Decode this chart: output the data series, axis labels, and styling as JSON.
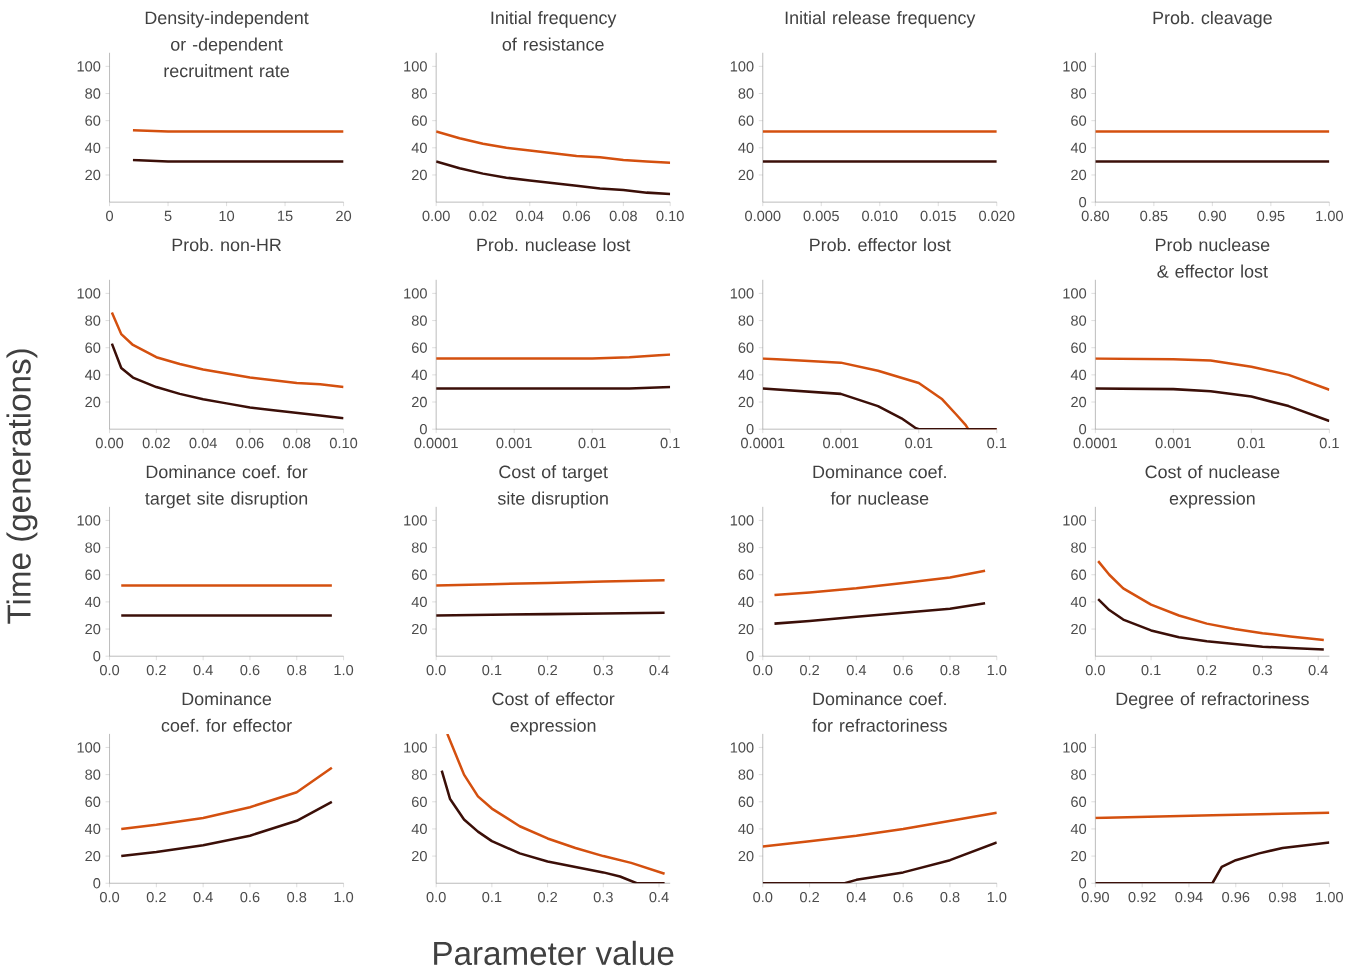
{
  "chart_data": [
    {
      "type": "line",
      "title": "Density-independent or -dependent recruitment rate",
      "ylabel": "Time (generations)",
      "xlim": [
        0,
        20
      ],
      "xticks": [
        0,
        5,
        10,
        15,
        20
      ],
      "ylim": [
        0,
        110
      ],
      "yticks": [
        20,
        40,
        60,
        80,
        100
      ],
      "series": [
        {
          "color": "#d4500f",
          "x": [
            2,
            5,
            10,
            15,
            20
          ],
          "values": [
            53,
            52,
            52,
            52,
            52
          ]
        },
        {
          "color": "#3b0f08",
          "x": [
            2,
            5,
            10,
            15,
            20
          ],
          "values": [
            31,
            30,
            30,
            30,
            30
          ]
        }
      ]
    },
    {
      "type": "line",
      "title": "Initial frequency of resistance",
      "xlim": [
        0,
        0.1
      ],
      "xticks": [
        {
          "value": 0,
          "label": "0.00"
        },
        {
          "value": 0.02,
          "label": "0.02"
        },
        {
          "value": 0.04,
          "label": "0.04"
        },
        {
          "value": 0.06,
          "label": "0.06"
        },
        {
          "value": 0.08,
          "label": "0.08"
        },
        {
          "value": 0.1,
          "label": "0.10"
        }
      ],
      "ylim": [
        0,
        110
      ],
      "yticks": [
        20,
        40,
        60,
        80,
        100
      ],
      "series": [
        {
          "color": "#d4500f",
          "x": [
            0,
            0.01,
            0.02,
            0.03,
            0.04,
            0.05,
            0.06,
            0.07,
            0.08,
            0.09,
            0.1
          ],
          "values": [
            52,
            47,
            43,
            40,
            38,
            36,
            34,
            33,
            31,
            30,
            29
          ]
        },
        {
          "color": "#3b0f08",
          "x": [
            0,
            0.01,
            0.02,
            0.03,
            0.04,
            0.05,
            0.06,
            0.07,
            0.08,
            0.09,
            0.1
          ],
          "values": [
            30,
            25,
            21,
            18,
            16,
            14,
            12,
            10,
            9,
            7,
            6
          ]
        }
      ]
    },
    {
      "type": "line",
      "title": "Initial release frequency",
      "xlim": [
        0,
        0.02
      ],
      "xticks": [
        {
          "value": 0,
          "label": "0.000"
        },
        {
          "value": 0.005,
          "label": "0.005"
        },
        {
          "value": 0.01,
          "label": "0.010"
        },
        {
          "value": 0.015,
          "label": "0.015"
        },
        {
          "value": 0.02,
          "label": "0.020"
        }
      ],
      "ylim": [
        0,
        110
      ],
      "yticks": [
        20,
        40,
        60,
        80,
        100
      ],
      "series": [
        {
          "color": "#d4500f",
          "x": [
            0,
            0.01,
            0.02
          ],
          "values": [
            52,
            52,
            52
          ]
        },
        {
          "color": "#3b0f08",
          "x": [
            0,
            0.01,
            0.02
          ],
          "values": [
            30,
            30,
            30
          ]
        }
      ]
    },
    {
      "type": "line",
      "title": "Prob. cleavage",
      "xlim": [
        0.8,
        1
      ],
      "xticks": [
        {
          "value": 0.8,
          "label": "0.80"
        },
        {
          "value": 0.85,
          "label": "0.85"
        },
        {
          "value": 0.9,
          "label": "0.90"
        },
        {
          "value": 0.95,
          "label": "0.95"
        },
        {
          "value": 1,
          "label": "1.00"
        }
      ],
      "ylim": [
        0,
        110
      ],
      "yticks": [
        0,
        20,
        40,
        60,
        80,
        100
      ],
      "series": [
        {
          "color": "#d4500f",
          "x": [
            0.8,
            0.9,
            1
          ],
          "values": [
            52,
            52,
            52
          ]
        },
        {
          "color": "#3b0f08",
          "x": [
            0.8,
            0.9,
            1
          ],
          "values": [
            30,
            30,
            30
          ]
        }
      ]
    },
    {
      "type": "line",
      "title": "Prob. non-HR",
      "xlim": [
        0,
        0.1
      ],
      "xticks": [
        {
          "value": 0,
          "label": "0.00"
        },
        {
          "value": 0.02,
          "label": "0.02"
        },
        {
          "value": 0.04,
          "label": "0.04"
        },
        {
          "value": 0.06,
          "label": "0.06"
        },
        {
          "value": 0.08,
          "label": "0.08"
        },
        {
          "value": 0.1,
          "label": "0.10"
        }
      ],
      "ylim": [
        0,
        110
      ],
      "yticks": [
        20,
        40,
        60,
        80,
        100
      ],
      "series": [
        {
          "color": "#d4500f",
          "x": [
            0.001,
            0.005,
            0.01,
            0.02,
            0.03,
            0.04,
            0.05,
            0.06,
            0.07,
            0.08,
            0.09,
            0.1
          ],
          "values": [
            86,
            70,
            62,
            53,
            48,
            44,
            41,
            38,
            36,
            34,
            33,
            31
          ]
        },
        {
          "color": "#3b0f08",
          "x": [
            0.001,
            0.005,
            0.01,
            0.02,
            0.03,
            0.04,
            0.05,
            0.06,
            0.07,
            0.08,
            0.09,
            0.1
          ],
          "values": [
            63,
            45,
            38,
            31,
            26,
            22,
            19,
            16,
            14,
            12,
            10,
            8
          ]
        }
      ]
    },
    {
      "type": "line",
      "title": "Prob. nuclease lost",
      "log": "x",
      "xlim": [
        0.0001,
        0.1
      ],
      "xticks": [
        0.0001,
        0.001,
        0.01,
        0.1
      ],
      "ylim": [
        0,
        110
      ],
      "yticks": [
        0,
        20,
        40,
        60,
        80,
        100
      ],
      "series": [
        {
          "color": "#d4500f",
          "x": [
            0.0001,
            0.001,
            0.01,
            0.03,
            0.1
          ],
          "values": [
            52,
            52,
            52,
            53,
            55
          ]
        },
        {
          "color": "#3b0f08",
          "x": [
            0.0001,
            0.001,
            0.01,
            0.03,
            0.1
          ],
          "values": [
            30,
            30,
            30,
            30,
            31
          ]
        }
      ]
    },
    {
      "type": "line",
      "title": "Prob. effector lost",
      "log": "x",
      "xlim": [
        0.0001,
        0.1
      ],
      "xticks": [
        0.0001,
        0.001,
        0.01,
        0.1
      ],
      "ylim": [
        0,
        110
      ],
      "yticks": [
        0,
        20,
        40,
        60,
        80,
        100
      ],
      "series": [
        {
          "color": "#d4500f",
          "x": [
            0.0001,
            0.0003,
            0.001,
            0.003,
            0.01,
            0.02,
            0.03,
            0.04,
            0.043,
            0.1
          ],
          "values": [
            52,
            50.5,
            49,
            43,
            34,
            22,
            11,
            3,
            0,
            0
          ]
        },
        {
          "color": "#3b0f08",
          "x": [
            0.0001,
            0.001,
            0.003,
            0.006,
            0.009,
            0.01,
            0.1
          ],
          "values": [
            30,
            26,
            17,
            8,
            1,
            0,
            0
          ]
        }
      ]
    },
    {
      "type": "line",
      "title": "Prob nuclease & effector lost",
      "log": "x",
      "xlim": [
        0.0001,
        0.1
      ],
      "xticks": [
        0.0001,
        0.001,
        0.01,
        0.1
      ],
      "ylim": [
        0,
        110
      ],
      "yticks": [
        0,
        20,
        40,
        60,
        80,
        100
      ],
      "series": [
        {
          "color": "#d4500f",
          "x": [
            0.0001,
            0.001,
            0.003,
            0.01,
            0.03,
            0.1
          ],
          "values": [
            52,
            51.5,
            50.5,
            46,
            40,
            29
          ]
        },
        {
          "color": "#3b0f08",
          "x": [
            0.0001,
            0.001,
            0.003,
            0.01,
            0.03,
            0.1
          ],
          "values": [
            30,
            29.5,
            28,
            24,
            17,
            6
          ]
        }
      ]
    },
    {
      "type": "line",
      "title": "Dominance coef. for target site disruption",
      "xlim": [
        0,
        1
      ],
      "xticks": [
        {
          "value": 0,
          "label": "0.0"
        },
        {
          "value": 0.2,
          "label": "0.2"
        },
        {
          "value": 0.4,
          "label": "0.4"
        },
        {
          "value": 0.6,
          "label": "0.6"
        },
        {
          "value": 0.8,
          "label": "0.8"
        },
        {
          "value": 1,
          "label": "1.0"
        }
      ],
      "ylim": [
        0,
        110
      ],
      "yticks": [
        0,
        20,
        40,
        60,
        80,
        100
      ],
      "series": [
        {
          "color": "#d4500f",
          "x": [
            0.05,
            0.5,
            0.95
          ],
          "values": [
            52,
            52,
            52
          ]
        },
        {
          "color": "#3b0f08",
          "x": [
            0.05,
            0.5,
            0.95
          ],
          "values": [
            30,
            30,
            30
          ]
        }
      ]
    },
    {
      "type": "line",
      "title": "Cost of target site disruption",
      "xlim": [
        0,
        0.42
      ],
      "xticks": [
        {
          "value": 0,
          "label": "0.0"
        },
        {
          "value": 0.1,
          "label": "0.1"
        },
        {
          "value": 0.2,
          "label": "0.2"
        },
        {
          "value": 0.3,
          "label": "0.3"
        },
        {
          "value": 0.4,
          "label": "0.4"
        }
      ],
      "ylim": [
        0,
        110
      ],
      "yticks": [
        20,
        40,
        60,
        80,
        100
      ],
      "series": [
        {
          "color": "#d4500f",
          "x": [
            0,
            0.1,
            0.2,
            0.3,
            0.41
          ],
          "values": [
            52,
            53,
            54,
            55,
            56
          ]
        },
        {
          "color": "#3b0f08",
          "x": [
            0,
            0.1,
            0.2,
            0.3,
            0.41
          ],
          "values": [
            30,
            30.5,
            31,
            31.5,
            32
          ]
        }
      ]
    },
    {
      "type": "line",
      "title": "Dominance coef. for nuclease",
      "xlim": [
        0,
        1
      ],
      "xticks": [
        {
          "value": 0,
          "label": "0.0"
        },
        {
          "value": 0.2,
          "label": "0.2"
        },
        {
          "value": 0.4,
          "label": "0.4"
        },
        {
          "value": 0.6,
          "label": "0.6"
        },
        {
          "value": 0.8,
          "label": "0.8"
        },
        {
          "value": 1,
          "label": "1.0"
        }
      ],
      "ylim": [
        0,
        110
      ],
      "yticks": [
        0,
        20,
        40,
        60,
        80,
        100
      ],
      "series": [
        {
          "color": "#d4500f",
          "x": [
            0.05,
            0.2,
            0.4,
            0.6,
            0.8,
            0.95
          ],
          "values": [
            45,
            47,
            50,
            54,
            58,
            63
          ]
        },
        {
          "color": "#3b0f08",
          "x": [
            0.05,
            0.2,
            0.4,
            0.6,
            0.8,
            0.95
          ],
          "values": [
            24,
            26,
            29,
            32,
            35,
            39
          ]
        }
      ]
    },
    {
      "type": "line",
      "title": "Cost of nuclease expression",
      "xlim": [
        0,
        0.42
      ],
      "xticks": [
        {
          "value": 0,
          "label": "0.0"
        },
        {
          "value": 0.1,
          "label": "0.1"
        },
        {
          "value": 0.2,
          "label": "0.2"
        },
        {
          "value": 0.3,
          "label": "0.3"
        },
        {
          "value": 0.4,
          "label": "0.4"
        }
      ],
      "ylim": [
        0,
        110
      ],
      "yticks": [
        20,
        40,
        60,
        80,
        100
      ],
      "series": [
        {
          "color": "#d4500f",
          "x": [
            0.005,
            0.025,
            0.05,
            0.1,
            0.15,
            0.2,
            0.25,
            0.3,
            0.35,
            0.41
          ],
          "values": [
            70,
            60,
            50,
            38,
            30,
            24,
            20,
            17,
            14.5,
            12
          ]
        },
        {
          "color": "#3b0f08",
          "x": [
            0.005,
            0.025,
            0.05,
            0.1,
            0.15,
            0.2,
            0.25,
            0.3,
            0.35,
            0.41
          ],
          "values": [
            42,
            34,
            27,
            19,
            14,
            11,
            9,
            7,
            6,
            5
          ]
        }
      ]
    },
    {
      "type": "line",
      "title": "Dominance coef. for effector",
      "xlim": [
        0,
        1
      ],
      "xticks": [
        {
          "value": 0,
          "label": "0.0"
        },
        {
          "value": 0.2,
          "label": "0.2"
        },
        {
          "value": 0.4,
          "label": "0.4"
        },
        {
          "value": 0.6,
          "label": "0.6"
        },
        {
          "value": 0.8,
          "label": "0.8"
        },
        {
          "value": 1,
          "label": "1.0"
        }
      ],
      "ylim": [
        0,
        110
      ],
      "yticks": [
        0,
        20,
        40,
        60,
        80,
        100
      ],
      "series": [
        {
          "color": "#d4500f",
          "x": [
            0.05,
            0.2,
            0.4,
            0.6,
            0.8,
            0.95
          ],
          "values": [
            40,
            43,
            48,
            56,
            67,
            85
          ]
        },
        {
          "color": "#3b0f08",
          "x": [
            0.05,
            0.2,
            0.4,
            0.6,
            0.8,
            0.95
          ],
          "values": [
            20,
            23,
            28,
            35,
            46,
            60
          ]
        }
      ]
    },
    {
      "type": "line",
      "title": "Cost of effector expression",
      "xlabel": "Parameter value",
      "xlim": [
        0,
        0.42
      ],
      "xticks": [
        {
          "value": 0,
          "label": "0.0"
        },
        {
          "value": 0.1,
          "label": "0.1"
        },
        {
          "value": 0.2,
          "label": "0.2"
        },
        {
          "value": 0.3,
          "label": "0.3"
        },
        {
          "value": 0.4,
          "label": "0.4"
        }
      ],
      "ylim": [
        0,
        110
      ],
      "yticks": [
        20,
        40,
        60,
        80,
        100
      ],
      "series": [
        {
          "color": "#d4500f",
          "x": [
            0.02,
            0.05,
            0.075,
            0.1,
            0.15,
            0.2,
            0.25,
            0.3,
            0.35,
            0.41
          ],
          "values": [
            110,
            80,
            64,
            55,
            42,
            33,
            26,
            20,
            15,
            7
          ]
        },
        {
          "color": "#3b0f08",
          "x": [
            0.01,
            0.025,
            0.05,
            0.075,
            0.1,
            0.15,
            0.2,
            0.25,
            0.3,
            0.33,
            0.36,
            0.41
          ],
          "values": [
            83,
            62,
            47,
            38,
            31,
            22,
            16,
            12,
            8,
            5,
            0,
            0
          ]
        }
      ]
    },
    {
      "type": "line",
      "title": "Dominance coef. for refractoriness",
      "xlim": [
        0,
        1
      ],
      "xticks": [
        {
          "value": 0,
          "label": "0.0"
        },
        {
          "value": 0.2,
          "label": "0.2"
        },
        {
          "value": 0.4,
          "label": "0.4"
        },
        {
          "value": 0.6,
          "label": "0.6"
        },
        {
          "value": 0.8,
          "label": "0.8"
        },
        {
          "value": 1,
          "label": "1.0"
        }
      ],
      "ylim": [
        0,
        110
      ],
      "yticks": [
        20,
        40,
        60,
        80,
        100
      ],
      "series": [
        {
          "color": "#d4500f",
          "x": [
            0,
            0.2,
            0.4,
            0.6,
            0.8,
            1
          ],
          "values": [
            27,
            31,
            35,
            40,
            46,
            52
          ]
        },
        {
          "color": "#3b0f08",
          "x": [
            0,
            0.35,
            0.4,
            0.6,
            0.8,
            1
          ],
          "values": [
            0,
            0,
            2.5,
            8,
            17,
            30
          ]
        }
      ]
    },
    {
      "type": "line",
      "title": "Degree of refractoriness",
      "xlim": [
        0.9,
        1
      ],
      "xticks": [
        {
          "value": 0.9,
          "label": "0.90"
        },
        {
          "value": 0.92,
          "label": "0.92"
        },
        {
          "value": 0.94,
          "label": "0.94"
        },
        {
          "value": 0.96,
          "label": "0.96"
        },
        {
          "value": 0.98,
          "label": "0.98"
        },
        {
          "value": 1,
          "label": "1.00"
        }
      ],
      "ylim": [
        0,
        110
      ],
      "yticks": [
        0,
        20,
        40,
        60,
        80,
        100
      ],
      "series": [
        {
          "color": "#d4500f",
          "x": [
            0.9,
            0.95,
            1
          ],
          "values": [
            48,
            50,
            52
          ]
        },
        {
          "color": "#3b0f08",
          "x": [
            0.9,
            0.95,
            0.954,
            0.96,
            0.97,
            0.98,
            0.99,
            1
          ],
          "values": [
            0,
            0,
            12,
            17,
            22,
            26,
            28,
            30
          ]
        }
      ]
    }
  ]
}
